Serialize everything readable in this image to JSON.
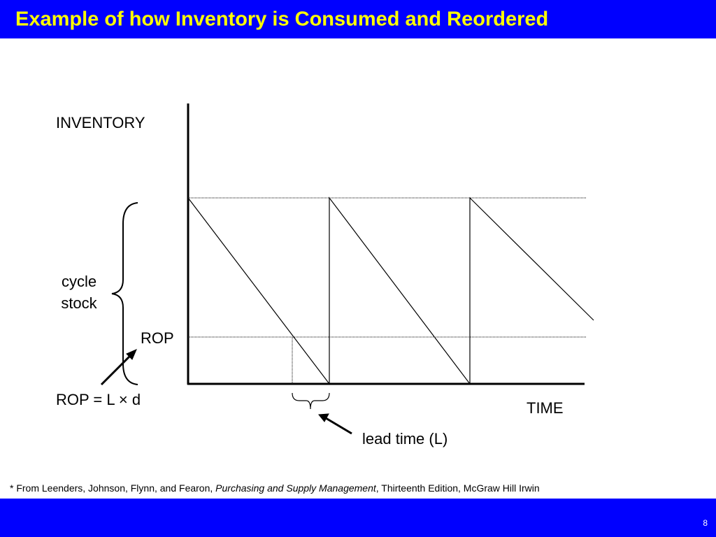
{
  "header": {
    "title": "Example of how Inventory is Consumed and Reordered"
  },
  "diagram": {
    "y_axis_label": "INVENTORY",
    "x_axis_label": "TIME",
    "cycle_stock": [
      "cycle",
      "stock"
    ],
    "rop_label": "ROP",
    "rop_formula": "ROP = L × d",
    "lead_time_label": "lead time (L)"
  },
  "footnote": {
    "parts": [
      "* From Leenders, Johnson, Flynn, and Fearon, ",
      "Purchasing and Supply Management",
      ", Thirteenth Edition, McGraw Hill Irwin"
    ]
  },
  "footer": {
    "page_number": "8"
  }
}
